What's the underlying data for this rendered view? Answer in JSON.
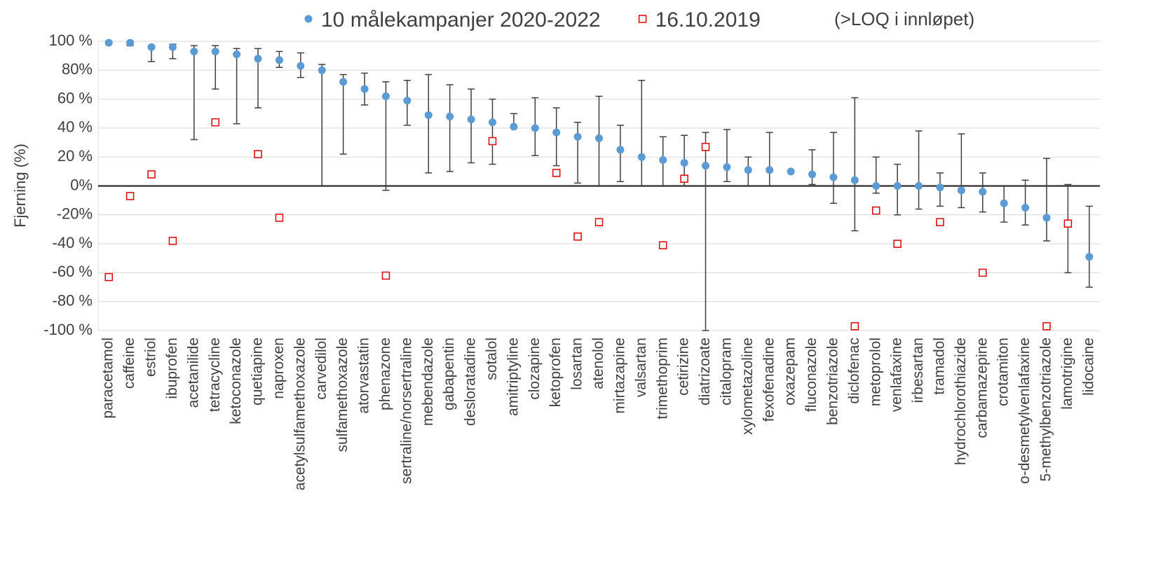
{
  "chart_data": {
    "type": "dot-errorbar",
    "y_label": "Fjerning (%)",
    "annotation": "(>LOQ i innløpet)",
    "categories": [
      "paracetamol",
      "caffeine",
      "estriol",
      "ibuprofen",
      "acetanilide",
      "tetracycline",
      "ketoconazole",
      "quetiapine",
      "naproxen",
      "acetylsulfamethoxazole",
      "carvedilol",
      "sulfamethoxazole",
      "atorvastatin",
      "phenazone",
      "sertraline/norsertraline",
      "mebendazole",
      "gabapentin",
      "desloratadine",
      "sotalol",
      "amitriptyline",
      "clozapine",
      "ketoprofen",
      "losartan",
      "atenolol",
      "mirtazapine",
      "valsartan",
      "trimethoprim",
      "cetirizine",
      "diatrizoate",
      "citalopram",
      "xylometazoline",
      "fexofenadine",
      "oxazepam",
      "fluconazole",
      "benzotriazole",
      "diclofenac",
      "metoprolol",
      "venlafaxine",
      "irbesartan",
      "tramadol",
      "hydrochlorothiazide",
      "carbamazepine",
      "crotamiton",
      "o-desmetylvenlafaxine",
      "5-methylbenzotriazole",
      "lamotrigine",
      "lidocaine"
    ],
    "series": [
      {
        "name": "10 målekampanjer 2020-2022",
        "color": "#5b9bd5",
        "marker": "circle",
        "values": [
          99,
          99,
          96,
          96,
          93,
          93,
          91,
          88,
          87,
          83,
          80,
          72,
          67,
          62,
          59,
          49,
          48,
          46,
          44,
          41,
          40,
          37,
          34,
          33,
          25,
          20,
          18,
          16,
          14,
          13,
          11,
          11,
          10,
          8,
          6,
          4,
          0,
          0,
          0,
          -1,
          -3,
          -4,
          -12,
          -15,
          -22,
          -26,
          -49
        ],
        "min": [
          98,
          97,
          86,
          88,
          32,
          67,
          43,
          54,
          82,
          75,
          0,
          22,
          56,
          -3,
          42,
          9,
          10,
          16,
          15,
          41,
          21,
          14,
          2,
          0,
          3,
          0,
          0,
          0,
          -100,
          3,
          0,
          0,
          10,
          1,
          -12,
          -31,
          -5,
          -20,
          -16,
          -14,
          -15,
          -18,
          -25,
          -27,
          -38,
          -60,
          -70
        ],
        "max": [
          100,
          100,
          97,
          98,
          97,
          97,
          95,
          95,
          93,
          92,
          84,
          77,
          78,
          72,
          73,
          77,
          70,
          67,
          60,
          50,
          61,
          54,
          44,
          62,
          42,
          73,
          34,
          35,
          37,
          39,
          20,
          37,
          10,
          25,
          37,
          61,
          20,
          15,
          38,
          9,
          36,
          9,
          0,
          4,
          19,
          1,
          -14
        ]
      },
      {
        "name": "16.10.2019",
        "color": "#e00000",
        "marker": "square",
        "values": [
          -63,
          -7,
          8,
          -38,
          null,
          44,
          null,
          22,
          -22,
          null,
          null,
          null,
          null,
          -62,
          null,
          null,
          null,
          null,
          31,
          null,
          null,
          9,
          -35,
          -25,
          null,
          null,
          -41,
          5,
          27,
          null,
          null,
          null,
          null,
          null,
          null,
          -97,
          -17,
          -40,
          null,
          -25,
          null,
          -60,
          null,
          null,
          -97,
          -26,
          null
        ]
      }
    ],
    "ylim": [
      -100,
      100
    ],
    "yticks": [
      {
        "value": 100,
        "label": "100 %"
      },
      {
        "value": 80,
        "label": "80%"
      },
      {
        "value": 60,
        "label": "60 %"
      },
      {
        "value": 40,
        "label": "40 %"
      },
      {
        "value": 20,
        "label": "20 %"
      },
      {
        "value": 0,
        "label": "0%"
      },
      {
        "value": -20,
        "label": "-20%"
      },
      {
        "value": -40,
        "label": "-40 %"
      },
      {
        "value": -60,
        "label": "-60 %"
      },
      {
        "value": -80,
        "label": "-80 %"
      },
      {
        "value": -100,
        "label": "-100 %"
      }
    ],
    "grid": true,
    "legend": "top"
  }
}
